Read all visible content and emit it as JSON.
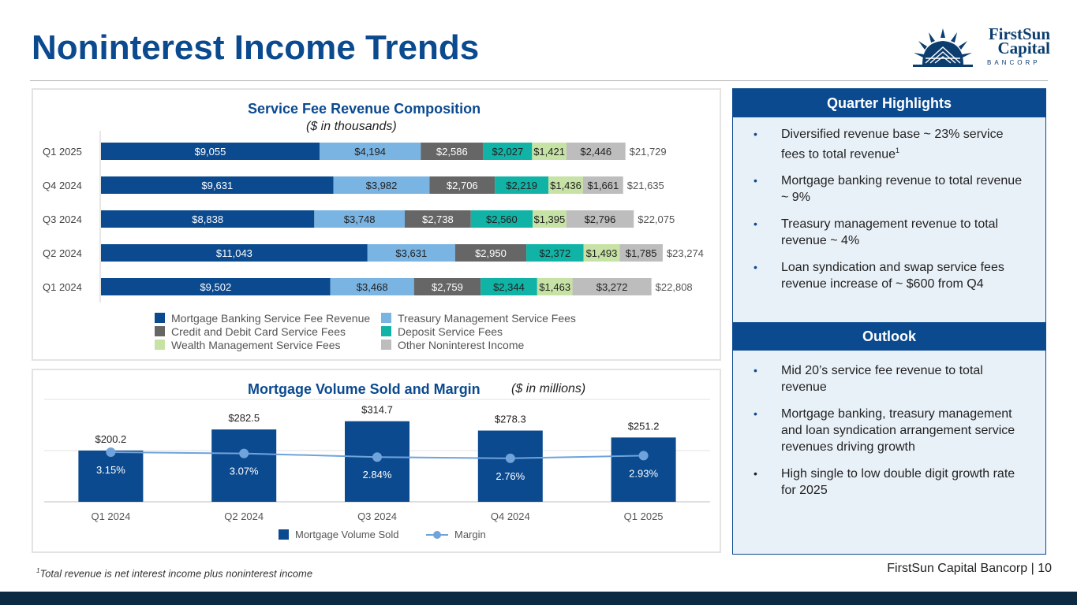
{
  "header": {
    "title": "Noninterest Income Trends"
  },
  "logo": {
    "line1": "FirstSun",
    "line2": "Capital",
    "sub": "BANCORP"
  },
  "colors": {
    "brand": "#0b4a8f",
    "mortgage": "#0b4a8f",
    "treasury": "#79b4e3",
    "card": "#666666",
    "deposit": "#10b3a6",
    "wealth": "#c6e2a4",
    "other": "#bdbdbd",
    "margin_line": "#6fa3dc"
  },
  "chart_data": [
    {
      "type": "bar",
      "orientation": "horizontal",
      "stacked": true,
      "title": "Service Fee Revenue Composition",
      "subtitle": "($ in thousands)",
      "categories": [
        "Q1 2025",
        "Q4 2024",
        "Q3 2024",
        "Q2 2024",
        "Q1 2024"
      ],
      "series": [
        {
          "name": "Mortgage Banking Service Fee Revenue",
          "key": "mortgage",
          "values": [
            9055,
            9631,
            8838,
            11043,
            9502
          ],
          "labels": [
            "$9,055",
            "$9,631",
            "$8,838",
            "$11,043",
            "$9,502"
          ]
        },
        {
          "name": "Treasury Management Service Fees",
          "key": "treasury",
          "values": [
            4194,
            3982,
            3748,
            3631,
            3468
          ],
          "labels": [
            "$4,194",
            "$3,982",
            "$3,748",
            "$3,631",
            "$3,468"
          ]
        },
        {
          "name": "Credit and Debit Card Service Fees",
          "key": "card",
          "values": [
            2586,
            2706,
            2738,
            2950,
            2759
          ],
          "labels": [
            "$2,586",
            "$2,706",
            "$2,738",
            "$2,950",
            "$2,759"
          ]
        },
        {
          "name": "Deposit Service Fees",
          "key": "deposit",
          "values": [
            2027,
            2219,
            2560,
            2372,
            2344
          ],
          "labels": [
            "$2,027",
            "$2,219",
            "$2,560",
            "$2,372",
            "$2,344"
          ]
        },
        {
          "name": "Wealth Management Service Fees",
          "key": "wealth",
          "values": [
            1421,
            1436,
            1395,
            1493,
            1463
          ],
          "labels": [
            "$1,421",
            "$1,436",
            "$1,395",
            "$1,493",
            "$1,463"
          ]
        },
        {
          "name": "Other Noninterest Income",
          "key": "other",
          "values": [
            2446,
            1661,
            2796,
            1785,
            3272
          ],
          "labels": [
            "$2,446",
            "$1,661",
            "$2,796",
            "$1,785",
            "$3,272"
          ]
        }
      ],
      "totals": [
        "$21,729",
        "$21,635",
        "$22,075",
        "$23,274",
        "$22,808"
      ],
      "total_values": [
        21729,
        21635,
        22075,
        23274,
        22808
      ],
      "xlim": [
        0,
        25500
      ],
      "legend_order": [
        "Mortgage Banking Service Fee Revenue",
        "Treasury Management Service Fees",
        "Credit and Debit Card Service Fees",
        "Deposit Service Fees",
        "Wealth Management Service Fees",
        "Other Noninterest Income"
      ],
      "legend_position": "bottom"
    },
    {
      "type": "bar",
      "title": "Mortgage Volume Sold and Margin",
      "subtitle": "($ in millions)",
      "categories": [
        "Q1 2024",
        "Q2 2024",
        "Q3 2024",
        "Q4 2024",
        "Q1 2025"
      ],
      "series": [
        {
          "name": "Mortgage Volume Sold",
          "type": "bar",
          "values": [
            200.2,
            282.5,
            314.7,
            278.3,
            251.2
          ],
          "labels": [
            "$200.2",
            "$282.5",
            "$314.7",
            "$278.3",
            "$251.2"
          ]
        },
        {
          "name": "Margin",
          "type": "line",
          "values": [
            3.15,
            3.07,
            2.84,
            2.76,
            2.93
          ],
          "labels": [
            "3.15%",
            "3.07%",
            "2.84%",
            "2.76%",
            "2.93%"
          ]
        }
      ],
      "ylim": [
        0,
        400
      ],
      "margin_lim": [
        0,
        6.5
      ],
      "grid": true,
      "legend_position": "bottom"
    }
  ],
  "highlights": {
    "header": "Quarter Highlights",
    "items": [
      {
        "text": "Diversified revenue base ~ 23% service fees to total revenue",
        "sup": "1"
      },
      {
        "text": "Mortgage banking revenue to total revenue ~ 9%",
        "sup": ""
      },
      {
        "text": "Treasury management revenue to total revenue ~ 4%",
        "sup": ""
      },
      {
        "text": "Loan syndication and swap service fees revenue increase of ~ $600 from Q4",
        "sup": ""
      }
    ]
  },
  "outlook": {
    "header": "Outlook",
    "items": [
      {
        "text": "Mid 20’s service fee revenue to total revenue"
      },
      {
        "text": "Mortgage banking, treasury management and loan syndication arrangement service revenues driving growth"
      },
      {
        "text": "High single to low double digit growth rate for 2025"
      }
    ]
  },
  "footnote": {
    "sup": "1",
    "text": "Total revenue is net interest income plus noninterest income"
  },
  "footer": {
    "company": "FirstSun Capital Bancorp",
    "separator": "|",
    "page": "10"
  }
}
